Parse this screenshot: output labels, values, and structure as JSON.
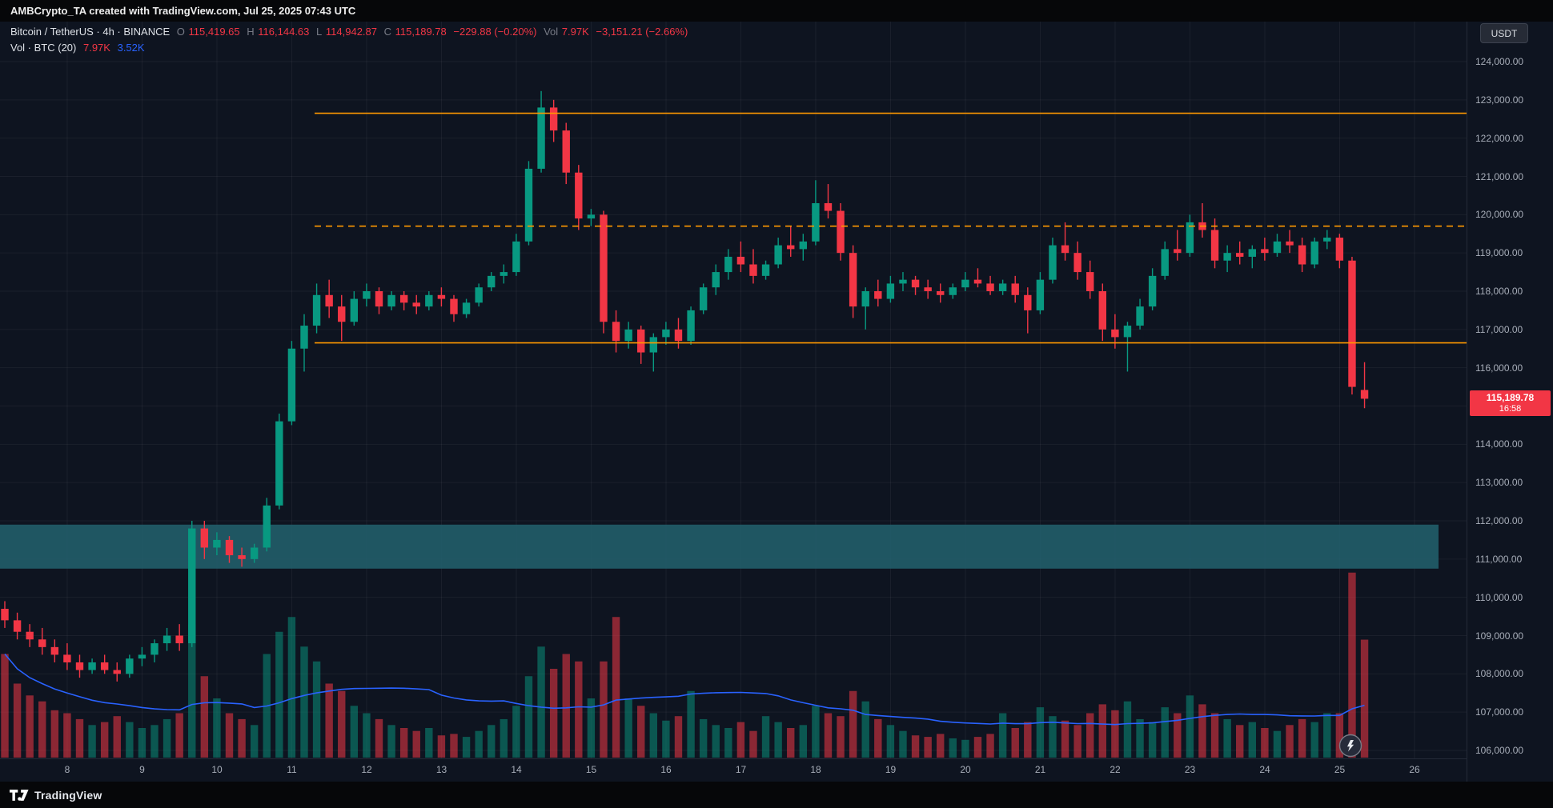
{
  "meta": {
    "attribution": "AMBCrypto_TA created with TradingView.com, Jul 25, 2025 07:43 UTC"
  },
  "header": {
    "series_title": "Bitcoin / TetherUS · 4h · BINANCE",
    "o_label": "O",
    "o": "115,419.65",
    "h_label": "H",
    "h": "116,144.63",
    "l_label": "L",
    "l": "114,942.87",
    "c_label": "C",
    "c": "115,189.78",
    "change": "−229.88 (−0.20%)",
    "vol_label": "Vol",
    "vol": "7.97K",
    "vol_change": "−3,151.21 (−2.66%)"
  },
  "indicator": {
    "label": "Vol · BTC (20)",
    "value": "7.97K",
    "ma_value": "3.52K"
  },
  "price_axis": {
    "unit_button": "USDT",
    "current_price": "115,189.78",
    "countdown": "16:58"
  },
  "brand": {
    "name": "TradingView"
  },
  "colors": {
    "background": "#0e1420",
    "up": "#089981",
    "down": "#f23645",
    "volume_up": "rgba(8,153,129,0.5)",
    "volume_down": "rgba(242,54,69,0.55)",
    "volume_ma": "#2962ff",
    "grid": "rgba(255,255,255,0.05)",
    "level_line": "#ff9800",
    "support_zone": "rgba(34,98,110,0.85)",
    "last_price_bg": "#f23645",
    "axis_text": "#a8aeb9"
  },
  "chart_data": {
    "type": "candlestick",
    "title": "Bitcoin / TetherUS 4h BINANCE",
    "interval": "4h",
    "unit": "USDT",
    "ylim": [
      105700,
      124500
    ],
    "grid": true,
    "price_axis_ticks": [
      124000,
      123000,
      122000,
      121000,
      120000,
      119000,
      118000,
      117000,
      116000,
      115000,
      114000,
      113000,
      112000,
      111000,
      110000,
      109000,
      108000,
      107000,
      106000
    ],
    "time_axis_days": [
      "8",
      "9",
      "10",
      "11",
      "12",
      "13",
      "14",
      "15",
      "16",
      "17",
      "18",
      "19",
      "20",
      "21",
      "22",
      "23",
      "24",
      "25",
      "26"
    ],
    "last_price": 115189.78,
    "volume_ma_period": 20,
    "levels": [
      {
        "type": "hline",
        "price": 122650,
        "style": "solid"
      },
      {
        "type": "hline",
        "price": 119700,
        "style": "dashed"
      },
      {
        "type": "hline",
        "price": 116650,
        "style": "solid"
      },
      {
        "type": "zone",
        "price_top": 111900,
        "price_bottom": 110750
      }
    ],
    "candles": [
      [
        109700,
        109900,
        109200,
        109400,
        7.0
      ],
      [
        109400,
        109600,
        108900,
        109100,
        5.0
      ],
      [
        109100,
        109300,
        108700,
        108900,
        4.2
      ],
      [
        108900,
        109200,
        108500,
        108700,
        3.8
      ],
      [
        108700,
        108900,
        108300,
        108500,
        3.2
      ],
      [
        108500,
        108800,
        108100,
        108300,
        3.0
      ],
      [
        108300,
        108500,
        107900,
        108100,
        2.6
      ],
      [
        108100,
        108400,
        108000,
        108300,
        2.2
      ],
      [
        108300,
        108500,
        108000,
        108100,
        2.4
      ],
      [
        108100,
        108300,
        107800,
        108000,
        2.8
      ],
      [
        108000,
        108500,
        107900,
        108400,
        2.4
      ],
      [
        108400,
        108700,
        108200,
        108500,
        2.0
      ],
      [
        108500,
        108900,
        108300,
        108800,
        2.2
      ],
      [
        108800,
        109200,
        108600,
        109000,
        2.6
      ],
      [
        109000,
        109300,
        108600,
        108800,
        3.0
      ],
      [
        108800,
        112000,
        108700,
        111800,
        9.0
      ],
      [
        111800,
        112000,
        111000,
        111300,
        5.5
      ],
      [
        111300,
        111700,
        111100,
        111500,
        4.0
      ],
      [
        111500,
        111600,
        110900,
        111100,
        3.0
      ],
      [
        111100,
        111300,
        110800,
        111000,
        2.6
      ],
      [
        111000,
        111400,
        110900,
        111300,
        2.2
      ],
      [
        111300,
        112600,
        111200,
        112400,
        7.0
      ],
      [
        112400,
        114800,
        112300,
        114600,
        8.5
      ],
      [
        114600,
        116700,
        114500,
        116500,
        9.5
      ],
      [
        116500,
        117400,
        115900,
        117100,
        7.5
      ],
      [
        117100,
        118200,
        116900,
        117900,
        6.5
      ],
      [
        117900,
        118300,
        117300,
        117600,
        5.0
      ],
      [
        117600,
        117900,
        116700,
        117200,
        4.5
      ],
      [
        117200,
        118000,
        117100,
        117800,
        3.5
      ],
      [
        117800,
        118200,
        117600,
        118000,
        3.0
      ],
      [
        118000,
        118100,
        117400,
        117600,
        2.6
      ],
      [
        117600,
        118000,
        117500,
        117900,
        2.2
      ],
      [
        117900,
        118000,
        117500,
        117700,
        2.0
      ],
      [
        117700,
        117900,
        117400,
        117600,
        1.8
      ],
      [
        117600,
        118000,
        117500,
        117900,
        2.0
      ],
      [
        117900,
        118100,
        117600,
        117800,
        1.5
      ],
      [
        117800,
        117900,
        117200,
        117400,
        1.6
      ],
      [
        117400,
        117800,
        117300,
        117700,
        1.4
      ],
      [
        117700,
        118200,
        117600,
        118100,
        1.8
      ],
      [
        118100,
        118500,
        118000,
        118400,
        2.2
      ],
      [
        118400,
        118700,
        118200,
        118500,
        2.6
      ],
      [
        118500,
        119500,
        118400,
        119300,
        3.5
      ],
      [
        119300,
        121400,
        119200,
        121200,
        5.5
      ],
      [
        121200,
        123230,
        121100,
        122800,
        7.5
      ],
      [
        122800,
        123000,
        121900,
        122200,
        6.0
      ],
      [
        122200,
        122400,
        120800,
        121100,
        7.0
      ],
      [
        121100,
        121300,
        119600,
        119900,
        6.5
      ],
      [
        119900,
        120150,
        119700,
        120000,
        4.0
      ],
      [
        120000,
        120100,
        116900,
        117200,
        6.5
      ],
      [
        117200,
        117500,
        116400,
        116700,
        9.5
      ],
      [
        116700,
        117200,
        116500,
        117000,
        4.0
      ],
      [
        117000,
        117100,
        116100,
        116400,
        3.5
      ],
      [
        116400,
        116900,
        115900,
        116800,
        3.0
      ],
      [
        116800,
        117200,
        116600,
        117000,
        2.5
      ],
      [
        117000,
        117300,
        116500,
        116700,
        2.8
      ],
      [
        116700,
        117600,
        116600,
        117500,
        4.5
      ],
      [
        117500,
        118200,
        117400,
        118100,
        2.6
      ],
      [
        118100,
        118700,
        117900,
        118500,
        2.2
      ],
      [
        118500,
        119100,
        118300,
        118900,
        2.0
      ],
      [
        118900,
        119300,
        118500,
        118700,
        2.4
      ],
      [
        118700,
        119100,
        118200,
        118400,
        1.8
      ],
      [
        118400,
        118800,
        118300,
        118700,
        2.8
      ],
      [
        118700,
        119400,
        118600,
        119200,
        2.4
      ],
      [
        119200,
        119700,
        118900,
        119100,
        2.0
      ],
      [
        119100,
        119500,
        118800,
        119300,
        2.2
      ],
      [
        119300,
        120900,
        119200,
        120300,
        3.5
      ],
      [
        120300,
        120800,
        119900,
        120100,
        3.0
      ],
      [
        120100,
        120300,
        118800,
        119000,
        2.8
      ],
      [
        119000,
        119200,
        117300,
        117600,
        4.5
      ],
      [
        117600,
        118100,
        117000,
        118000,
        3.8
      ],
      [
        118000,
        118300,
        117600,
        117800,
        2.6
      ],
      [
        117800,
        118400,
        117700,
        118200,
        2.2
      ],
      [
        118200,
        118500,
        118000,
        118300,
        1.8
      ],
      [
        118300,
        118400,
        117900,
        118100,
        1.5
      ],
      [
        118100,
        118300,
        117800,
        118000,
        1.4
      ],
      [
        118000,
        118200,
        117700,
        117900,
        1.6
      ],
      [
        117900,
        118200,
        117800,
        118100,
        1.3
      ],
      [
        118100,
        118500,
        118000,
        118300,
        1.2
      ],
      [
        118300,
        118600,
        118100,
        118200,
        1.4
      ],
      [
        118200,
        118400,
        117900,
        118000,
        1.6
      ],
      [
        118000,
        118300,
        117900,
        118200,
        3.0
      ],
      [
        118200,
        118400,
        117700,
        117900,
        2.0
      ],
      [
        117900,
        118100,
        116900,
        117500,
        2.4
      ],
      [
        117500,
        118500,
        117400,
        118300,
        3.4
      ],
      [
        118300,
        119400,
        118200,
        119200,
        2.8
      ],
      [
        119200,
        119800,
        118800,
        119000,
        2.5
      ],
      [
        119000,
        119300,
        118300,
        118500,
        2.2
      ],
      [
        118500,
        118800,
        117800,
        118000,
        3.0
      ],
      [
        118000,
        118200,
        116700,
        117000,
        3.6
      ],
      [
        117000,
        117400,
        116500,
        116800,
        3.2
      ],
      [
        116800,
        117200,
        115900,
        117100,
        3.8
      ],
      [
        117100,
        117800,
        117000,
        117600,
        2.6
      ],
      [
        117600,
        118600,
        117500,
        118400,
        2.4
      ],
      [
        118400,
        119300,
        118300,
        119100,
        3.4
      ],
      [
        119100,
        119600,
        118800,
        119000,
        3.0
      ],
      [
        119000,
        120000,
        118900,
        119800,
        4.2
      ],
      [
        119800,
        120300,
        119400,
        119600,
        3.6
      ],
      [
        119600,
        119900,
        118600,
        118800,
        3.0
      ],
      [
        118800,
        119200,
        118500,
        119000,
        2.6
      ],
      [
        119000,
        119300,
        118700,
        118900,
        2.2
      ],
      [
        118900,
        119200,
        118600,
        119100,
        2.4
      ],
      [
        119100,
        119400,
        118800,
        119000,
        2.0
      ],
      [
        119000,
        119500,
        118900,
        119300,
        1.8
      ],
      [
        119300,
        119600,
        119000,
        119200,
        2.2
      ],
      [
        119200,
        119400,
        118500,
        118700,
        2.6
      ],
      [
        118700,
        119400,
        118600,
        119300,
        2.4
      ],
      [
        119300,
        119600,
        119100,
        119400,
        3.0
      ],
      [
        119400,
        119500,
        118600,
        118800,
        3.0
      ],
      [
        118800,
        118900,
        115300,
        115500,
        12.5
      ],
      [
        115419.65,
        116144.63,
        114942.87,
        115189.78,
        7.97
      ]
    ]
  }
}
